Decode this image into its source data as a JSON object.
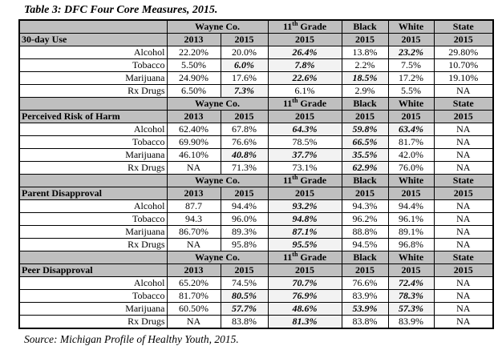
{
  "title": "Table 3: DFC Four Core Measures, 2015.",
  "source": "Source: Michigan Profile of Healthy Youth, 2015.",
  "colors": {
    "header_bg": "#bfbfbf",
    "highlight_bg": "#f2f2f2",
    "border": "#000000",
    "page_bg": "#ffffff"
  },
  "table": {
    "header_groups": [
      {
        "label": "Wayne Co.",
        "span": 2
      },
      {
        "label": "11th Grade",
        "pre": "11",
        "sup": "th",
        "post": " Grade"
      },
      {
        "label": "Black"
      },
      {
        "label": "White"
      },
      {
        "label": "State"
      }
    ],
    "year_values": [
      "2013",
      "2015",
      "2015",
      "2015",
      "2015",
      "2015"
    ],
    "sections": [
      {
        "name": "30-day Use",
        "rows": [
          {
            "label": "Alcohol",
            "cells": [
              {
                "v": "22.20%"
              },
              {
                "v": "20.0%"
              },
              {
                "v": "26.4%",
                "b": true
              },
              {
                "v": "13.8%"
              },
              {
                "v": "23.2%",
                "b": true
              },
              {
                "v": "29.80%"
              }
            ]
          },
          {
            "label": "Tobacco",
            "cells": [
              {
                "v": "5.50%"
              },
              {
                "v": "6.0%",
                "b": true
              },
              {
                "v": "7.8%",
                "b": true
              },
              {
                "v": "2.2%"
              },
              {
                "v": "7.5%"
              },
              {
                "v": "10.70%"
              }
            ]
          },
          {
            "label": "Marijuana",
            "cells": [
              {
                "v": "24.90%"
              },
              {
                "v": "17.6%"
              },
              {
                "v": "22.6%",
                "b": true
              },
              {
                "v": "18.5%",
                "b": true
              },
              {
                "v": "17.2%"
              },
              {
                "v": "19.10%"
              }
            ]
          },
          {
            "label": "Rx Drugs",
            "cells": [
              {
                "v": "6.50%"
              },
              {
                "v": "7.3%",
                "b": true
              },
              {
                "v": "6.1%"
              },
              {
                "v": "2.9%"
              },
              {
                "v": "5.5%"
              },
              {
                "v": "NA"
              }
            ]
          }
        ]
      },
      {
        "name": "Perceived Risk of Harm",
        "rows": [
          {
            "label": "Alcohol",
            "cells": [
              {
                "v": "62.40%"
              },
              {
                "v": "67.8%"
              },
              {
                "v": "64.3%",
                "b": true
              },
              {
                "v": "59.8%",
                "b": true
              },
              {
                "v": "63.4%",
                "b": true
              },
              {
                "v": "NA"
              }
            ]
          },
          {
            "label": "Tobacco",
            "cells": [
              {
                "v": "69.90%"
              },
              {
                "v": "76.6%"
              },
              {
                "v": "78.5%"
              },
              {
                "v": "66.5%",
                "b": true
              },
              {
                "v": "81.7%"
              },
              {
                "v": "NA"
              }
            ]
          },
          {
            "label": "Marijuana",
            "cells": [
              {
                "v": "46.10%"
              },
              {
                "v": "40.8%",
                "b": true
              },
              {
                "v": "37.7%",
                "b": true
              },
              {
                "v": "35.5%",
                "b": true
              },
              {
                "v": "42.0%"
              },
              {
                "v": "NA"
              }
            ]
          },
          {
            "label": "Rx Drugs",
            "cells": [
              {
                "v": "NA"
              },
              {
                "v": "71.3%"
              },
              {
                "v": "73.1%"
              },
              {
                "v": "62.9%",
                "b": true
              },
              {
                "v": "76.0%"
              },
              {
                "v": "NA"
              }
            ]
          }
        ]
      },
      {
        "name": "Parent Disapproval",
        "rows": [
          {
            "label": "Alcohol",
            "cells": [
              {
                "v": "87.7"
              },
              {
                "v": "94.4%"
              },
              {
                "v": "93.2%",
                "b": true
              },
              {
                "v": "94.3%"
              },
              {
                "v": "94.4%"
              },
              {
                "v": "NA"
              }
            ]
          },
          {
            "label": "Tobacco",
            "cells": [
              {
                "v": "94.3"
              },
              {
                "v": "96.0%"
              },
              {
                "v": "94.8%",
                "b": true
              },
              {
                "v": "96.2%"
              },
              {
                "v": "96.1%"
              },
              {
                "v": "NA"
              }
            ]
          },
          {
            "label": "Marijuana",
            "cells": [
              {
                "v": "86.70%"
              },
              {
                "v": "89.3%"
              },
              {
                "v": "87.1%",
                "b": true
              },
              {
                "v": "88.8%"
              },
              {
                "v": "89.1%"
              },
              {
                "v": "NA"
              }
            ]
          },
          {
            "label": "Rx Drugs",
            "cells": [
              {
                "v": "NA"
              },
              {
                "v": "95.8%"
              },
              {
                "v": "95.5%",
                "b": true
              },
              {
                "v": "94.5%"
              },
              {
                "v": "96.8%"
              },
              {
                "v": "NA"
              }
            ]
          }
        ]
      },
      {
        "name": "Peer Disapproval",
        "rows": [
          {
            "label": "Alcohol",
            "cells": [
              {
                "v": "65.20%"
              },
              {
                "v": "74.5%"
              },
              {
                "v": "70.7%",
                "b": true
              },
              {
                "v": "76.6%"
              },
              {
                "v": "72.4%",
                "b": true
              },
              {
                "v": "NA"
              }
            ]
          },
          {
            "label": "Tobacco",
            "cells": [
              {
                "v": "81.70%"
              },
              {
                "v": "80.5%",
                "b": true
              },
              {
                "v": "76.9%",
                "b": true
              },
              {
                "v": "83.9%"
              },
              {
                "v": "78.3%",
                "b": true
              },
              {
                "v": "NA"
              }
            ]
          },
          {
            "label": "Marijuana",
            "cells": [
              {
                "v": "60.50%"
              },
              {
                "v": "57.7%",
                "b": true
              },
              {
                "v": "48.6%",
                "b": true
              },
              {
                "v": "53.9%",
                "b": true
              },
              {
                "v": "57.3%",
                "b": true
              },
              {
                "v": "NA"
              }
            ]
          },
          {
            "label": "Rx Drugs",
            "cells": [
              {
                "v": "NA"
              },
              {
                "v": "83.8%"
              },
              {
                "v": "81.3%",
                "b": true
              },
              {
                "v": "83.8%"
              },
              {
                "v": "83.9%"
              },
              {
                "v": "NA"
              }
            ]
          }
        ]
      }
    ]
  }
}
